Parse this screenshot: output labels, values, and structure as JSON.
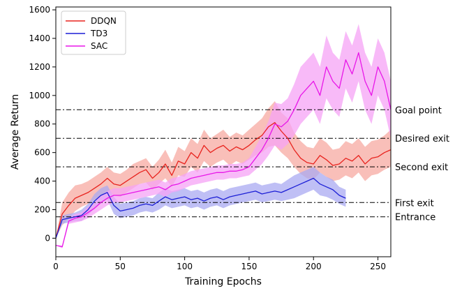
{
  "chart_data": {
    "type": "line",
    "title": "",
    "xlabel": "Training Epochs",
    "ylabel": "Average Return",
    "xlim": [
      0,
      260
    ],
    "ylim": [
      -130,
      1620
    ],
    "xticks": [
      0,
      50,
      100,
      150,
      200,
      250
    ],
    "yticks": [
      0,
      200,
      400,
      600,
      800,
      1000,
      1200,
      1400,
      1600
    ],
    "grid": false,
    "legend_position": "top-left",
    "reference_lines": [
      {
        "label": "Goal point",
        "value": 900
      },
      {
        "label": "Desired exit",
        "value": 700
      },
      {
        "label": "Second exit",
        "value": 500
      },
      {
        "label": "First exit",
        "value": 250
      },
      {
        "label": "Entrance",
        "value": 150
      }
    ],
    "series": [
      {
        "name": "DDQN",
        "color": "#e8231e",
        "band_color": "#f7a9a1",
        "x": [
          0,
          5,
          10,
          15,
          20,
          25,
          30,
          35,
          40,
          45,
          50,
          55,
          60,
          65,
          70,
          75,
          80,
          85,
          90,
          95,
          100,
          105,
          110,
          115,
          120,
          125,
          130,
          135,
          140,
          145,
          150,
          155,
          160,
          165,
          170,
          175,
          180,
          185,
          190,
          195,
          200,
          205,
          210,
          215,
          220,
          225,
          230,
          235,
          240,
          245,
          250,
          255,
          260
        ],
        "y": [
          0,
          170,
          230,
          280,
          300,
          320,
          350,
          380,
          420,
          380,
          370,
          400,
          430,
          460,
          480,
          420,
          460,
          520,
          440,
          540,
          520,
          600,
          560,
          650,
          600,
          630,
          650,
          610,
          640,
          620,
          650,
          690,
          720,
          780,
          810,
          750,
          700,
          620,
          560,
          530,
          520,
          580,
          550,
          510,
          520,
          560,
          540,
          580,
          520,
          560,
          570,
          600,
          620
        ],
        "lower": [
          0,
          90,
          140,
          190,
          220,
          240,
          270,
          300,
          330,
          300,
          290,
          320,
          350,
          380,
          390,
          340,
          380,
          420,
          360,
          440,
          430,
          500,
          460,
          540,
          500,
          530,
          550,
          510,
          540,
          520,
          550,
          580,
          600,
          640,
          650,
          600,
          560,
          500,
          450,
          420,
          410,
          460,
          430,
          400,
          410,
          440,
          420,
          460,
          400,
          440,
          450,
          480,
          500
        ],
        "upper": [
          0,
          250,
          320,
          370,
          380,
          400,
          430,
          460,
          500,
          460,
          450,
          480,
          520,
          540,
          560,
          500,
          550,
          620,
          530,
          640,
          610,
          700,
          660,
          760,
          700,
          730,
          760,
          710,
          740,
          720,
          760,
          800,
          840,
          910,
          960,
          880,
          840,
          740,
          680,
          640,
          630,
          700,
          670,
          620,
          630,
          680,
          660,
          700,
          640,
          680,
          690,
          720,
          760
        ]
      },
      {
        "name": "TD3",
        "color": "#1c1fd6",
        "band_color": "#a9a9f2",
        "x": [
          0,
          5,
          10,
          15,
          20,
          25,
          30,
          35,
          40,
          45,
          50,
          55,
          60,
          65,
          70,
          75,
          80,
          85,
          90,
          95,
          100,
          105,
          110,
          115,
          120,
          125,
          130,
          135,
          140,
          145,
          150,
          155,
          160,
          165,
          170,
          175,
          180,
          185,
          190,
          195,
          200,
          205,
          210,
          215,
          220,
          225
        ],
        "y": [
          0,
          130,
          140,
          150,
          160,
          200,
          260,
          300,
          320,
          230,
          190,
          200,
          210,
          230,
          240,
          230,
          260,
          290,
          270,
          280,
          290,
          270,
          280,
          260,
          280,
          290,
          270,
          290,
          300,
          310,
          320,
          330,
          310,
          320,
          330,
          320,
          340,
          360,
          380,
          400,
          420,
          380,
          360,
          340,
          300,
          280
        ],
        "lower": [
          0,
          100,
          110,
          120,
          120,
          160,
          210,
          250,
          270,
          170,
          140,
          150,
          160,
          180,
          190,
          180,
          200,
          230,
          210,
          220,
          230,
          210,
          220,
          200,
          220,
          230,
          210,
          230,
          240,
          250,
          260,
          270,
          250,
          260,
          270,
          260,
          270,
          280,
          300,
          320,
          340,
          300,
          290,
          270,
          240,
          220
        ],
        "upper": [
          0,
          160,
          170,
          180,
          200,
          240,
          310,
          350,
          370,
          290,
          240,
          250,
          260,
          280,
          290,
          280,
          320,
          350,
          330,
          340,
          350,
          330,
          340,
          320,
          340,
          350,
          330,
          350,
          360,
          370,
          380,
          390,
          370,
          380,
          390,
          380,
          410,
          440,
          460,
          480,
          500,
          460,
          430,
          410,
          360,
          340
        ]
      },
      {
        "name": "SAC",
        "color": "#e817e8",
        "band_color": "#f5a3f5",
        "x": [
          0,
          5,
          10,
          15,
          20,
          25,
          30,
          35,
          40,
          45,
          50,
          55,
          60,
          65,
          70,
          75,
          80,
          85,
          90,
          95,
          100,
          105,
          110,
          115,
          120,
          125,
          130,
          135,
          140,
          145,
          150,
          155,
          160,
          165,
          170,
          175,
          180,
          185,
          190,
          195,
          200,
          205,
          210,
          215,
          220,
          225,
          230,
          235,
          240,
          245,
          250,
          255,
          260
        ],
        "y": [
          -50,
          -60,
          120,
          140,
          150,
          180,
          210,
          250,
          280,
          300,
          300,
          310,
          320,
          330,
          340,
          350,
          360,
          340,
          370,
          380,
          400,
          420,
          430,
          440,
          450,
          460,
          460,
          470,
          470,
          480,
          500,
          560,
          620,
          700,
          800,
          780,
          820,
          900,
          1000,
          1050,
          1100,
          1000,
          1200,
          1100,
          1050,
          1250,
          1150,
          1300,
          1100,
          1000,
          1200,
          1100,
          900
        ],
        "lower": [
          -50,
          -70,
          100,
          110,
          120,
          140,
          170,
          200,
          230,
          250,
          250,
          260,
          270,
          280,
          290,
          300,
          310,
          290,
          320,
          330,
          350,
          370,
          380,
          390,
          400,
          410,
          410,
          420,
          420,
          430,
          440,
          480,
          520,
          580,
          650,
          620,
          660,
          720,
          800,
          850,
          900,
          800,
          980,
          900,
          850,
          1050,
          950,
          1100,
          900,
          800,
          1000,
          900,
          700
        ],
        "upper": [
          -50,
          -50,
          140,
          170,
          180,
          220,
          250,
          300,
          330,
          350,
          350,
          360,
          370,
          380,
          390,
          400,
          410,
          390,
          420,
          430,
          450,
          470,
          480,
          490,
          500,
          510,
          510,
          520,
          520,
          530,
          560,
          640,
          720,
          820,
          950,
          940,
          980,
          1080,
          1200,
          1250,
          1300,
          1200,
          1420,
          1300,
          1250,
          1450,
          1350,
          1500,
          1300,
          1200,
          1400,
          1300,
          1100
        ]
      }
    ]
  }
}
